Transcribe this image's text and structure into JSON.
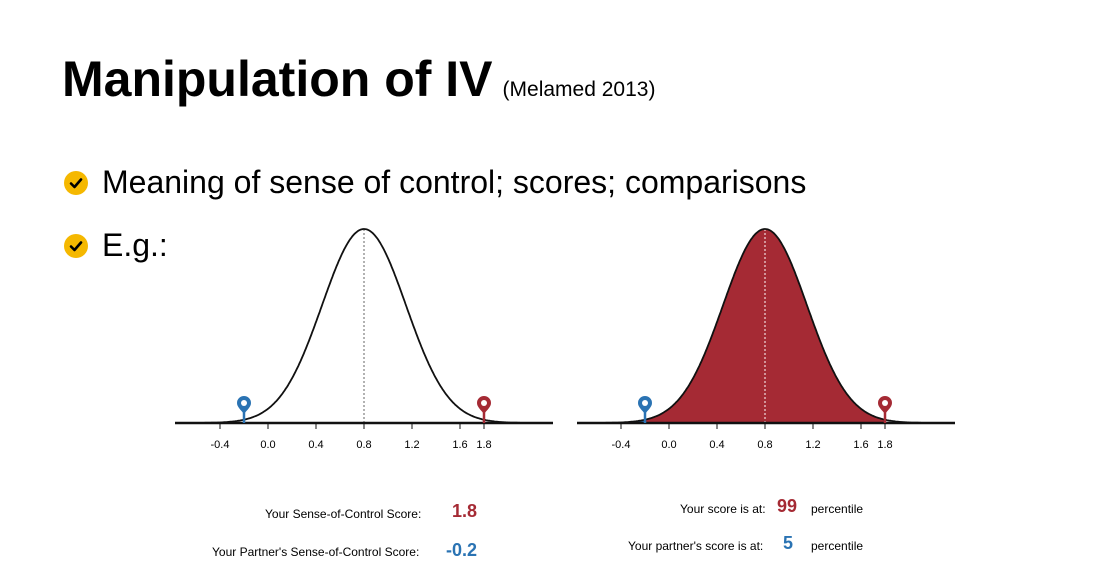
{
  "title": {
    "main": "Manipulation of IV",
    "cite": "(Melamed 2013)"
  },
  "bullets": [
    {
      "text": "Meaning of sense of control; scores; comparisons",
      "icon": "check-circle-icon"
    },
    {
      "text": "E.g.:",
      "icon": "check-circle-icon"
    }
  ],
  "colors": {
    "bullet": "#f5b800",
    "red": "#a52a34",
    "blue": "#2a73b3"
  },
  "scores": {
    "self_label": "Your Sense-of-Control Score:",
    "self_value": "1.8",
    "partner_label": "Your Partner's Sense-of-Control Score:",
    "partner_value": "-0.2"
  },
  "percentiles": {
    "self_label": "Your score is at:",
    "self_value": "99",
    "self_suffix": "percentile",
    "partner_label": "Your partner's score is at:",
    "partner_value": "5",
    "partner_suffix": "percentile"
  },
  "chart_data": [
    {
      "type": "area",
      "distribution": "normal",
      "mean": 0.8,
      "sd": 0.35,
      "xticks": [
        "-0.4",
        "0.0",
        "0.4",
        "0.8",
        "1.2",
        "1.6",
        "1.8"
      ],
      "xlim": [
        -0.55,
        2.1
      ],
      "mean_line": "dashed",
      "markers": [
        {
          "x": -0.2,
          "color": "#2a73b3",
          "icon": "location-pin-icon"
        },
        {
          "x": 1.8,
          "color": "#a52a34",
          "icon": "location-pin-icon"
        }
      ],
      "shaded": []
    },
    {
      "type": "area",
      "distribution": "normal",
      "mean": 0.8,
      "sd": 0.35,
      "xticks": [
        "-0.4",
        "0.0",
        "0.4",
        "0.8",
        "1.2",
        "1.6",
        "1.8"
      ],
      "xlim": [
        -0.55,
        2.1
      ],
      "mean_line": "dashed",
      "markers": [
        {
          "x": -0.2,
          "color": "#2a73b3",
          "icon": "location-pin-icon"
        },
        {
          "x": 1.8,
          "color": "#a52a34",
          "icon": "location-pin-icon"
        }
      ],
      "shaded": [
        {
          "from": -0.55,
          "to": -0.2,
          "color": "#2a73b3"
        },
        {
          "from": -0.2,
          "to": 1.8,
          "color": "#a52a34"
        }
      ]
    }
  ]
}
